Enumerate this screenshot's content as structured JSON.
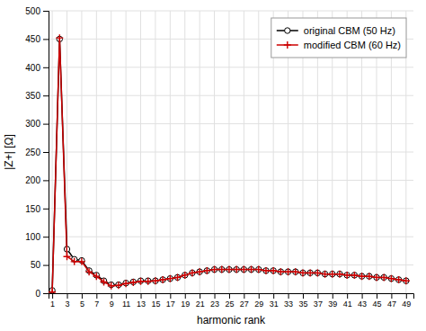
{
  "chart_data": {
    "type": "line",
    "xlabel": "harmonic rank",
    "ylabel": "|Z+| [Ω]",
    "x": [
      1,
      2,
      3,
      4,
      5,
      6,
      7,
      8,
      9,
      10,
      11,
      12,
      13,
      14,
      15,
      16,
      17,
      18,
      19,
      20,
      21,
      22,
      23,
      24,
      25,
      26,
      27,
      28,
      29,
      30,
      31,
      32,
      33,
      34,
      35,
      36,
      37,
      38,
      39,
      40,
      41,
      42,
      43,
      44,
      45,
      46,
      47,
      48,
      49
    ],
    "series": [
      {
        "name": "original CBM (50 Hz)",
        "color": "#000000",
        "marker": "circle",
        "values": [
          5,
          450,
          78,
          60,
          58,
          40,
          32,
          22,
          15,
          15,
          18,
          20,
          22,
          22,
          22,
          24,
          26,
          28,
          32,
          36,
          38,
          40,
          42,
          42,
          42,
          42,
          42,
          42,
          42,
          40,
          40,
          38,
          38,
          38,
          36,
          36,
          36,
          34,
          34,
          34,
          32,
          32,
          30,
          30,
          28,
          28,
          26,
          24,
          22
        ]
      },
      {
        "name": "modified CBM (60 Hz)",
        "color": "#cc0000",
        "marker": "plus",
        "values": [
          2,
          452,
          65,
          56,
          56,
          38,
          30,
          20,
          13,
          14,
          17,
          19,
          21,
          21,
          22,
          24,
          26,
          28,
          32,
          36,
          38,
          40,
          42,
          42,
          42,
          42,
          42,
          42,
          42,
          40,
          40,
          38,
          38,
          38,
          36,
          36,
          36,
          34,
          34,
          34,
          32,
          32,
          30,
          30,
          28,
          28,
          26,
          24,
          22
        ]
      }
    ],
    "xlim": [
      0.5,
      50
    ],
    "ylim": [
      0,
      500
    ],
    "xticks": [
      1,
      3,
      5,
      7,
      9,
      11,
      13,
      15,
      17,
      19,
      21,
      23,
      25,
      27,
      29,
      31,
      33,
      35,
      37,
      39,
      41,
      43,
      45,
      47,
      49
    ],
    "yticks": [
      0,
      50,
      100,
      150,
      200,
      250,
      300,
      350,
      400,
      450,
      500
    ],
    "grid": true,
    "legend": "upper right"
  }
}
